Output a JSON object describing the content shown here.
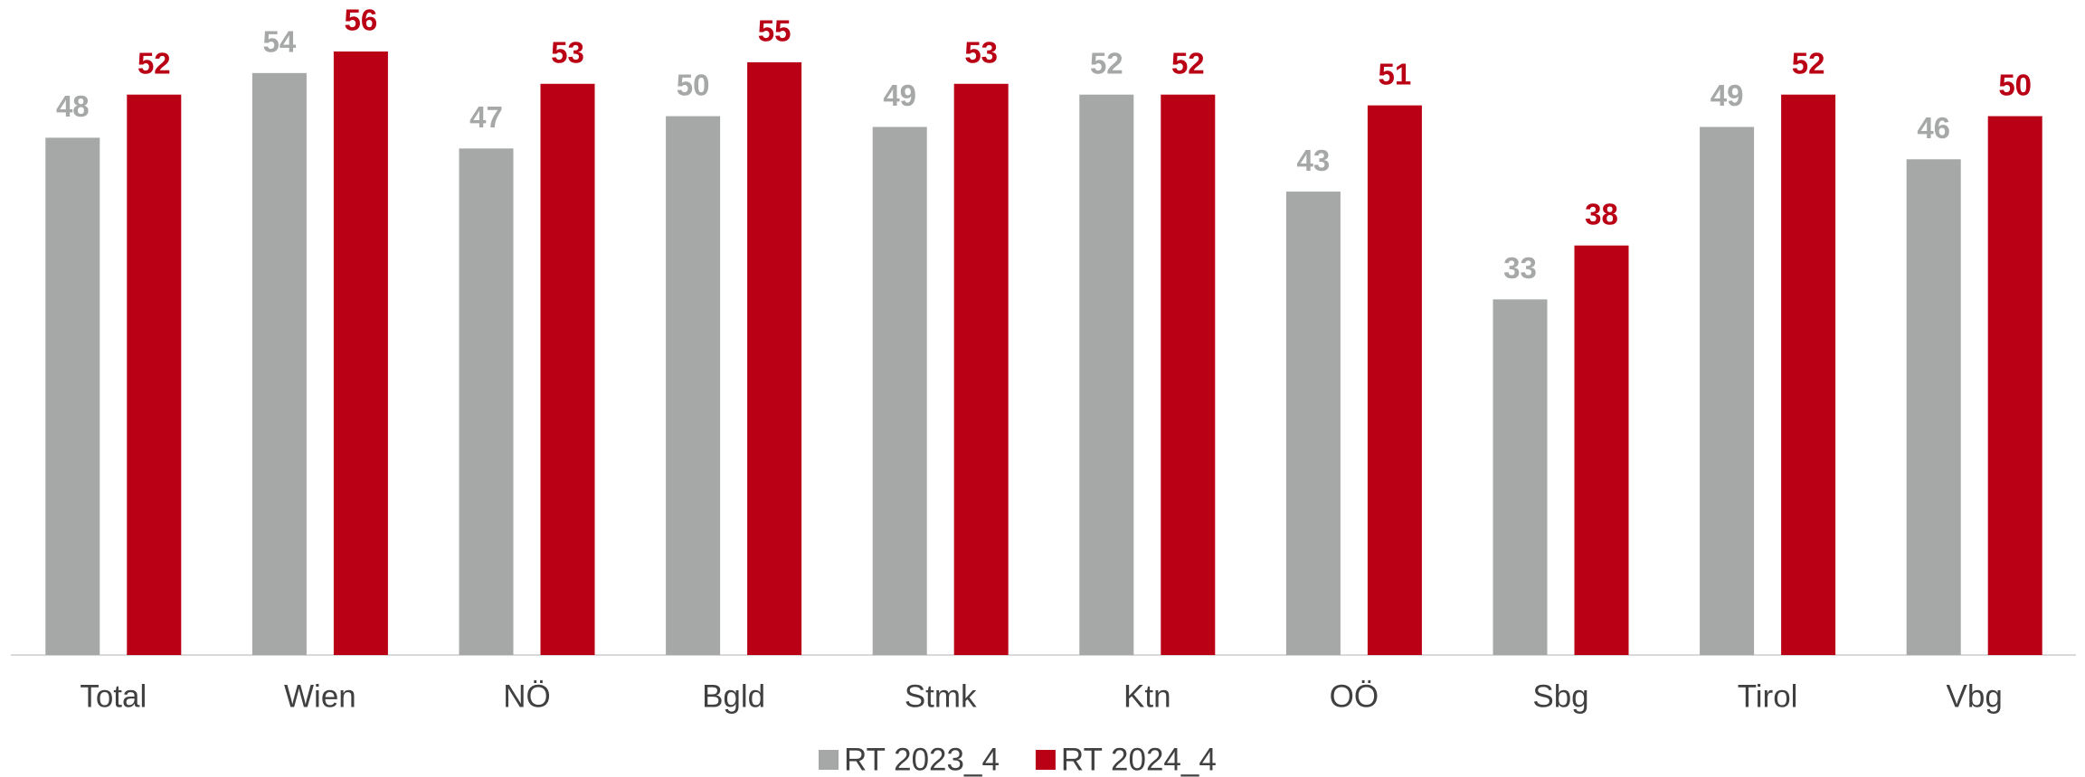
{
  "chart_data": {
    "type": "bar",
    "categories": [
      "Total",
      "Wien",
      "NÖ",
      "Bgld",
      "Stmk",
      "Ktn",
      "OÖ",
      "Sbg",
      "Tirol",
      "Vbg"
    ],
    "series": [
      {
        "name": "RT 2023_4",
        "color": "#a5a8a7",
        "values": [
          48,
          54,
          47,
          50,
          49,
          52,
          43,
          33,
          49,
          46
        ]
      },
      {
        "name": "RT 2024_4",
        "color": "#b90014",
        "values": [
          52,
          56,
          53,
          55,
          53,
          52,
          51,
          38,
          52,
          50
        ]
      }
    ],
    "ylim": [
      0,
      56
    ],
    "legend": "bottom"
  }
}
